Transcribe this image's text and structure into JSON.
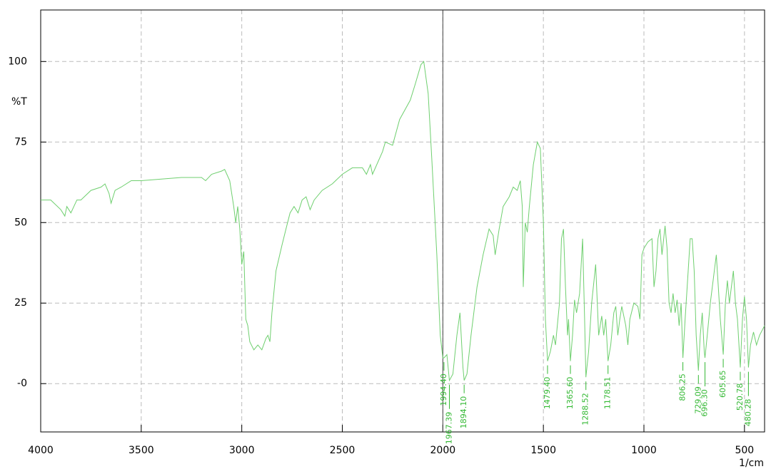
{
  "chart_data": {
    "type": "line",
    "ylabel": "%T",
    "xlabel": "1/cm",
    "xlim": [
      4000,
      400
    ],
    "ylim": [
      -15,
      116
    ],
    "xticks": [
      4000,
      3500,
      3000,
      2500,
      2000,
      1500,
      1000,
      500
    ],
    "yticks": [
      100,
      75,
      50,
      25,
      {
        "value": 0,
        "label": "-0"
      }
    ],
    "grid": true,
    "cursor": 2000,
    "series": [
      {
        "color": "#6fcf6f",
        "x": [
          4000,
          3950,
          3900,
          3880,
          3870,
          3850,
          3820,
          3800,
          3750,
          3700,
          3680,
          3660,
          3650,
          3630,
          3600,
          3550,
          3500,
          3400,
          3300,
          3200,
          3180,
          3150,
          3100,
          3085,
          3060,
          3040,
          3030,
          3020,
          3010,
          3000,
          2990,
          2980,
          2970,
          2960,
          2940,
          2920,
          2900,
          2880,
          2870,
          2860,
          2850,
          2830,
          2800,
          2780,
          2760,
          2740,
          2720,
          2700,
          2680,
          2660,
          2640,
          2600,
          2550,
          2500,
          2450,
          2400,
          2380,
          2360,
          2350,
          2300,
          2286,
          2250,
          2215,
          2162,
          2137,
          2109,
          2095,
          2073,
          2055,
          2030,
          2013,
          2000,
          1994.4,
          1980,
          1967.39,
          1950,
          1930,
          1915,
          1900,
          1894.1,
          1880,
          1860,
          1830,
          1800,
          1770,
          1750,
          1740,
          1720,
          1700,
          1670,
          1650,
          1630,
          1615,
          1605,
          1600,
          1590,
          1580,
          1570,
          1550,
          1530,
          1515,
          1500,
          1490,
          1479.4,
          1465,
          1450,
          1440,
          1420,
          1410,
          1400,
          1390,
          1380,
          1375,
          1365.6,
          1355,
          1345,
          1335,
          1320,
          1305,
          1295,
          1288.52,
          1275,
          1260,
          1240,
          1225,
          1210,
          1200,
          1190,
          1178.51,
          1165,
          1150,
          1140,
          1130,
          1120,
          1110,
          1090,
          1080,
          1070,
          1050,
          1030,
          1020,
          1010,
          1000,
          980,
          960,
          950,
          940,
          930,
          920,
          910,
          895,
          885,
          875,
          865,
          855,
          845,
          835,
          825,
          815,
          806.25,
          795,
          780,
          770,
          760,
          750,
          740,
          729.09,
          720,
          710,
          700,
          696.3,
          685,
          670,
          650,
          640,
          630,
          620,
          605.65,
          595,
          585,
          575,
          565,
          555,
          545,
          535,
          520.78,
          510,
          500,
          490,
          480.28,
          470,
          455,
          440,
          425,
          400
        ],
        "values": [
          57,
          57,
          54,
          52,
          55,
          53,
          57,
          57,
          60,
          61,
          62,
          59,
          56,
          60,
          61,
          63,
          63,
          63.5,
          64,
          64,
          63,
          65,
          66,
          66.5,
          63,
          55,
          50,
          55,
          48,
          37,
          41,
          20,
          18,
          13,
          10.5,
          12,
          10.5,
          14,
          15,
          13,
          22,
          35,
          43,
          48,
          53,
          55,
          53,
          57,
          58,
          54,
          57,
          60,
          62,
          65,
          67,
          67,
          65,
          68,
          65,
          72,
          75,
          74,
          82,
          88,
          93,
          99,
          100,
          90,
          70,
          40,
          15,
          8,
          8,
          9,
          1,
          3,
          15,
          22,
          5,
          1,
          3,
          15,
          30,
          40,
          48,
          46,
          40,
          48,
          55,
          58,
          61,
          60,
          63,
          55,
          30,
          50,
          47,
          55,
          68,
          75,
          73,
          50,
          20,
          7,
          10,
          15,
          12,
          25,
          45,
          48,
          30,
          15,
          20,
          7,
          15,
          26,
          22,
          28,
          45,
          20,
          2,
          10,
          25,
          37,
          15,
          21,
          15,
          20,
          7,
          12,
          22,
          24,
          15,
          20,
          24,
          18,
          12,
          20,
          25,
          24,
          20,
          40,
          42,
          44,
          45,
          30,
          35,
          45,
          48,
          40,
          49,
          42,
          25,
          22,
          28,
          22,
          26,
          18,
          25,
          8,
          20,
          35,
          45,
          45,
          35,
          15,
          4,
          15,
          22,
          10,
          8,
          15,
          25,
          35,
          40,
          30,
          20,
          9,
          25,
          32,
          25,
          30,
          35,
          25,
          20,
          5,
          20,
          27,
          20,
          5,
          12,
          16,
          12,
          15,
          18
        ]
      }
    ],
    "annotations": [
      {
        "value": 1994.4,
        "label": "1994.40",
        "y": 8
      },
      {
        "value": 1967.39,
        "label": "1967.39",
        "y": 1
      },
      {
        "value": 1894.1,
        "label": "1894.10",
        "y": 1
      },
      {
        "value": 1479.4,
        "label": "1479.40",
        "y": 7
      },
      {
        "value": 1365.6,
        "label": "1365.60",
        "y": 7
      },
      {
        "value": 1288.52,
        "label": "1288.52",
        "y": 2
      },
      {
        "value": 1178.51,
        "label": "1178.51",
        "y": 7
      },
      {
        "value": 806.25,
        "label": "806.25",
        "y": 8
      },
      {
        "value": 729.09,
        "label": "729.09",
        "y": 4
      },
      {
        "value": 696.3,
        "label": "696.30",
        "y": 8
      },
      {
        "value": 605.65,
        "label": "605.65",
        "y": 9
      },
      {
        "value": 520.78,
        "label": "520.78",
        "y": 5
      },
      {
        "value": 480.28,
        "label": "480.28",
        "y": 5
      }
    ]
  }
}
